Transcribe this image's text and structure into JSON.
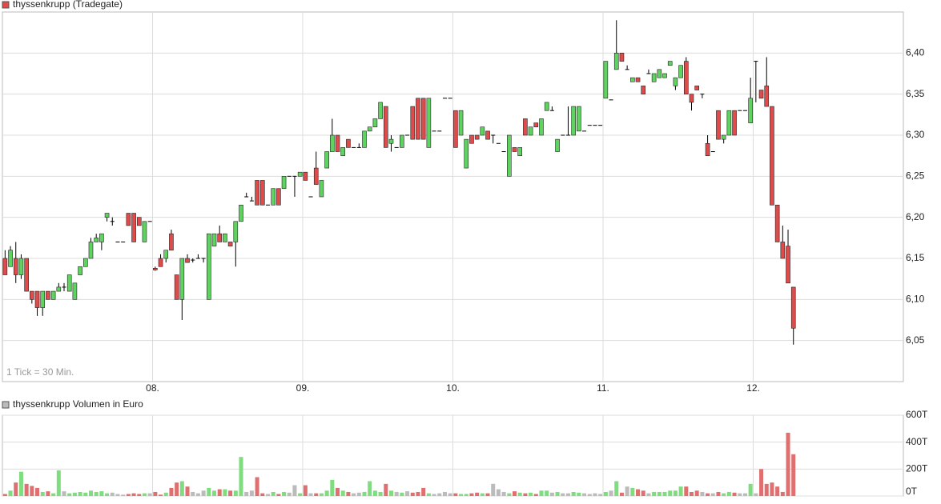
{
  "chart_data": [
    {
      "type": "candlestick",
      "legend": "thyssenkrupp (Tradegate)",
      "note": "1 Tick = 30 Min.",
      "up_color": "#5fd35f",
      "down_color": "#dd4b4b",
      "flat_color": "#000000",
      "xlim": [
        0,
        168
      ],
      "xticks": [
        {
          "value": 28,
          "label": "08."
        },
        {
          "value": 56,
          "label": "09."
        },
        {
          "value": 84,
          "label": "10."
        },
        {
          "value": 112,
          "label": "11."
        },
        {
          "value": 140,
          "label": "12."
        }
      ],
      "ylim": [
        6.0,
        6.45
      ],
      "yticks": [
        {
          "value": 6.05,
          "label": "6,05"
        },
        {
          "value": 6.1,
          "label": "6,10"
        },
        {
          "value": 6.15,
          "label": "6,15"
        },
        {
          "value": 6.2,
          "label": "6,20"
        },
        {
          "value": 6.25,
          "label": "6,25"
        },
        {
          "value": 6.3,
          "label": "6,30"
        },
        {
          "value": 6.35,
          "label": "6,35"
        },
        {
          "value": 6.4,
          "label": "6,40"
        }
      ],
      "grid": true,
      "ohlc": [
        [
          6.15,
          6.16,
          6.13,
          6.13
        ],
        [
          6.14,
          6.165,
          6.14,
          6.16
        ],
        [
          6.15,
          6.17,
          6.12,
          6.13
        ],
        [
          6.13,
          6.155,
          6.125,
          6.15
        ],
        [
          6.15,
          6.15,
          6.11,
          6.11
        ],
        [
          6.11,
          6.11,
          6.095,
          6.1
        ],
        [
          6.11,
          6.11,
          6.08,
          6.09
        ],
        [
          6.09,
          6.11,
          6.08,
          6.11
        ],
        [
          6.11,
          6.11,
          6.1,
          6.1
        ],
        [
          6.1,
          6.11,
          6.1,
          6.11
        ],
        [
          6.11,
          6.12,
          6.11,
          6.115
        ],
        [
          6.115,
          6.12,
          6.11,
          6.115
        ],
        [
          6.11,
          6.13,
          6.11,
          6.13
        ],
        [
          6.1,
          6.12,
          6.1,
          6.12
        ],
        [
          6.13,
          6.14,
          6.13,
          6.14
        ],
        [
          6.14,
          6.15,
          6.14,
          6.15
        ],
        [
          6.15,
          6.175,
          6.15,
          6.17
        ],
        [
          6.17,
          6.18,
          6.17,
          6.175
        ],
        [
          6.17,
          6.18,
          6.16,
          6.18
        ],
        [
          6.2,
          6.205,
          6.195,
          6.205
        ],
        [
          6.195,
          6.2,
          6.19,
          6.195
        ],
        [
          6.17,
          6.17,
          6.17,
          6.17
        ],
        [
          6.17,
          6.17,
          6.17,
          6.17
        ],
        [
          6.205,
          6.205,
          6.19,
          6.19
        ],
        [
          6.205,
          6.205,
          6.17,
          6.17
        ],
        [
          6.2,
          6.2,
          6.19,
          6.19
        ],
        [
          6.17,
          6.195,
          6.17,
          6.195
        ],
        [
          6.195,
          6.195,
          6.195,
          6.195
        ],
        [
          6.138,
          6.14,
          6.135,
          6.136
        ],
        [
          6.15,
          6.155,
          6.14,
          6.14
        ],
        [
          6.15,
          6.16,
          6.145,
          6.16
        ],
        [
          6.18,
          6.185,
          6.16,
          6.16
        ],
        [
          6.13,
          6.13,
          6.1,
          6.1
        ],
        [
          6.1,
          6.15,
          6.075,
          6.15
        ],
        [
          6.15,
          6.155,
          6.145,
          6.145
        ],
        [
          6.148,
          6.15,
          6.145,
          6.148
        ],
        [
          6.15,
          6.155,
          6.15,
          6.15
        ],
        [
          6.15,
          6.15,
          6.145,
          6.15
        ],
        [
          6.1,
          6.18,
          6.1,
          6.18
        ],
        [
          6.165,
          6.18,
          6.165,
          6.18
        ],
        [
          6.18,
          6.19,
          6.17,
          6.17
        ],
        [
          6.17,
          6.18,
          6.17,
          6.18
        ],
        [
          6.17,
          6.17,
          6.165,
          6.165
        ],
        [
          6.17,
          6.195,
          6.14,
          6.195
        ],
        [
          6.195,
          6.215,
          6.195,
          6.215
        ],
        [
          6.225,
          6.23,
          6.225,
          6.225
        ],
        [
          6.22,
          6.225,
          6.22,
          6.22
        ],
        [
          6.245,
          6.245,
          6.215,
          6.215
        ],
        [
          6.245,
          6.245,
          6.215,
          6.215
        ],
        [
          6.215,
          6.215,
          6.215,
          6.215
        ],
        [
          6.215,
          6.235,
          6.215,
          6.235
        ],
        [
          6.235,
          6.235,
          6.215,
          6.215
        ],
        [
          6.235,
          6.25,
          6.235,
          6.25
        ],
        [
          6.25,
          6.25,
          6.25,
          6.25
        ],
        [
          6.25,
          6.25,
          6.225,
          6.25
        ],
        [
          6.25,
          6.255,
          6.25,
          6.255
        ],
        [
          6.255,
          6.255,
          6.245,
          6.245
        ],
        [
          6.225,
          6.225,
          6.225,
          6.225
        ],
        [
          6.26,
          6.28,
          6.24,
          6.24
        ],
        [
          6.225,
          6.245,
          6.225,
          6.245
        ],
        [
          6.26,
          6.28,
          6.26,
          6.28
        ],
        [
          6.28,
          6.32,
          6.28,
          6.3
        ],
        [
          6.3,
          6.3,
          6.28,
          6.28
        ],
        [
          6.275,
          6.285,
          6.275,
          6.285
        ],
        [
          6.295,
          6.295,
          6.285,
          6.285
        ],
        [
          6.285,
          6.285,
          6.285,
          6.285
        ],
        [
          6.285,
          6.29,
          6.285,
          6.285
        ],
        [
          6.285,
          6.305,
          6.285,
          6.305
        ],
        [
          6.305,
          6.31,
          6.305,
          6.31
        ],
        [
          6.31,
          6.32,
          6.31,
          6.32
        ],
        [
          6.32,
          6.34,
          6.32,
          6.34
        ],
        [
          6.335,
          6.335,
          6.285,
          6.285
        ],
        [
          6.29,
          6.3,
          6.28,
          6.295
        ],
        [
          6.285,
          6.285,
          6.285,
          6.285
        ],
        [
          6.285,
          6.3,
          6.285,
          6.3
        ],
        [
          6.3,
          6.3,
          6.3,
          6.3
        ],
        [
          6.335,
          6.335,
          6.295,
          6.295
        ],
        [
          6.345,
          6.345,
          6.295,
          6.295
        ],
        [
          6.345,
          6.345,
          6.295,
          6.295
        ],
        [
          6.285,
          6.345,
          6.285,
          6.345
        ],
        [
          6.305,
          6.305,
          6.305,
          6.305
        ],
        [
          6.305,
          6.305,
          6.305,
          6.305
        ],
        [
          6.345,
          6.345,
          6.345,
          6.345
        ],
        [
          6.345,
          6.345,
          6.345,
          6.345
        ],
        [
          6.33,
          6.33,
          6.285,
          6.285
        ],
        [
          6.3,
          6.33,
          6.3,
          6.33
        ],
        [
          6.26,
          6.295,
          6.26,
          6.295
        ],
        [
          6.3,
          6.3,
          6.29,
          6.29
        ],
        [
          6.3,
          6.3,
          6.295,
          6.295
        ],
        [
          6.3,
          6.31,
          6.3,
          6.31
        ],
        [
          6.305,
          6.305,
          6.295,
          6.295
        ],
        [
          6.3,
          6.3,
          6.29,
          6.3
        ],
        [
          6.29,
          6.29,
          6.29,
          6.29
        ],
        [
          6.28,
          6.28,
          6.28,
          6.28
        ],
        [
          6.25,
          6.3,
          6.25,
          6.3
        ],
        [
          6.285,
          6.285,
          6.28,
          6.28
        ],
        [
          6.275,
          6.285,
          6.275,
          6.285
        ],
        [
          6.32,
          6.32,
          6.3,
          6.3
        ],
        [
          6.3,
          6.31,
          6.3,
          6.31
        ],
        [
          6.315,
          6.315,
          6.31,
          6.31
        ],
        [
          6.3,
          6.32,
          6.3,
          6.32
        ],
        [
          6.33,
          6.34,
          6.33,
          6.34
        ],
        [
          6.33,
          6.335,
          6.33,
          6.33
        ],
        [
          6.28,
          6.295,
          6.28,
          6.295
        ],
        [
          6.3,
          6.3,
          6.3,
          6.3
        ],
        [
          6.3,
          6.335,
          6.3,
          6.3
        ],
        [
          6.3,
          6.335,
          6.3,
          6.335
        ],
        [
          6.305,
          6.335,
          6.305,
          6.335
        ],
        [
          6.305,
          6.305,
          6.305,
          6.305
        ],
        [
          6.312,
          6.312,
          6.312,
          6.312
        ],
        [
          6.312,
          6.312,
          6.312,
          6.312
        ],
        [
          6.312,
          6.312,
          6.312,
          6.312
        ],
        [
          6.345,
          6.39,
          6.345,
          6.39
        ],
        [
          6.343,
          6.343,
          6.343,
          6.343
        ],
        [
          6.38,
          6.44,
          6.38,
          6.4
        ],
        [
          6.4,
          6.4,
          6.39,
          6.39
        ],
        [
          6.38,
          6.385,
          6.38,
          6.38
        ],
        [
          6.365,
          6.37,
          6.365,
          6.37
        ],
        [
          6.37,
          6.37,
          6.365,
          6.365
        ],
        [
          6.36,
          6.36,
          6.35,
          6.35
        ],
        [
          6.375,
          6.38,
          6.375,
          6.375
        ],
        [
          6.365,
          6.375,
          6.365,
          6.375
        ],
        [
          6.37,
          6.38,
          6.37,
          6.38
        ],
        [
          6.37,
          6.375,
          6.37,
          6.375
        ],
        [
          6.385,
          6.39,
          6.385,
          6.39
        ],
        [
          6.36,
          6.37,
          6.355,
          6.37
        ],
        [
          6.37,
          6.385,
          6.37,
          6.385
        ],
        [
          6.39,
          6.395,
          6.35,
          6.35
        ],
        [
          6.35,
          6.35,
          6.33,
          6.34
        ],
        [
          6.36,
          6.36,
          6.355,
          6.355
        ],
        [
          6.35,
          6.35,
          6.345,
          6.35
        ],
        [
          6.29,
          6.3,
          6.275,
          6.275
        ],
        [
          6.28,
          6.28,
          6.28,
          6.28
        ],
        [
          6.33,
          6.33,
          6.295,
          6.295
        ],
        [
          6.295,
          6.3,
          6.29,
          6.3
        ],
        [
          6.3,
          6.33,
          6.3,
          6.33
        ],
        [
          6.33,
          6.33,
          6.3,
          6.3
        ],
        [
          6.33,
          6.33,
          6.33,
          6.33
        ],
        [
          6.33,
          6.33,
          6.33,
          6.33
        ],
        [
          6.315,
          6.37,
          6.315,
          6.345
        ],
        [
          6.39,
          6.39,
          6.34,
          6.39
        ],
        [
          6.355,
          6.355,
          6.345,
          6.345
        ],
        [
          6.36,
          6.395,
          6.335,
          6.335
        ],
        [
          6.335,
          6.335,
          6.215,
          6.215
        ],
        [
          6.215,
          6.215,
          6.17,
          6.17
        ],
        [
          6.17,
          6.19,
          6.15,
          6.15
        ],
        [
          6.165,
          6.185,
          6.12,
          6.12
        ],
        [
          6.115,
          6.115,
          6.045,
          6.065
        ]
      ]
    },
    {
      "type": "bar",
      "legend": "thyssenkrupp Volumen in Euro",
      "legend_color": "#bbbbbb",
      "up_color": "#7fdc7f",
      "down_color": "#e07070",
      "flat_color": "#bbbbbb",
      "xlim": [
        0,
        168
      ],
      "xticks": [
        28,
        56,
        84,
        112,
        140
      ],
      "ylim": [
        0,
        600
      ],
      "yticks": [
        {
          "value": 0,
          "label": "0T"
        },
        {
          "value": 200,
          "label": "200T"
        },
        {
          "value": 400,
          "label": "400T"
        },
        {
          "value": 600,
          "label": "600T"
        }
      ],
      "grid": true,
      "values": [
        15,
        40,
        100,
        180,
        90,
        75,
        60,
        30,
        35,
        20,
        190,
        35,
        20,
        25,
        30,
        25,
        40,
        30,
        35,
        20,
        25,
        15,
        10,
        15,
        20,
        15,
        20,
        20,
        30,
        10,
        25,
        60,
        100,
        110,
        70,
        30,
        20,
        40,
        60,
        40,
        50,
        50,
        40,
        40,
        290,
        30,
        40,
        140,
        20,
        15,
        30,
        15,
        30,
        25,
        80,
        20,
        80,
        20,
        20,
        20,
        40,
        120,
        60,
        40,
        30,
        20,
        25,
        30,
        110,
        40,
        30,
        90,
        40,
        30,
        25,
        35,
        25,
        30,
        60,
        20,
        15,
        20,
        30,
        20,
        20,
        15,
        15,
        20,
        25,
        20,
        20,
        90,
        50,
        30,
        20,
        35,
        25,
        20,
        25,
        15,
        40,
        40,
        25,
        30,
        20,
        20,
        30,
        25,
        20,
        15,
        20,
        15,
        30,
        40,
        110,
        25,
        70,
        60,
        50,
        40,
        20,
        30,
        30,
        30,
        40,
        40,
        70,
        70,
        30,
        40,
        30,
        20,
        20,
        30,
        20,
        30,
        25,
        20,
        20,
        90,
        20,
        200,
        90,
        100,
        70,
        30,
        470,
        310
      ]
    }
  ]
}
